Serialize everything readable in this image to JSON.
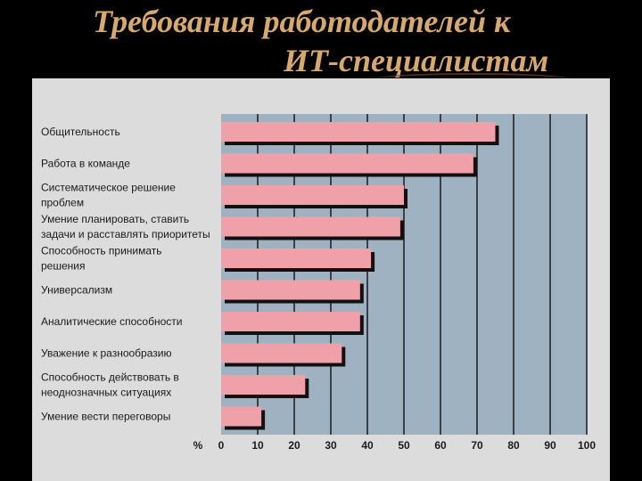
{
  "slide": {
    "title_line1": "Требования работодателей к",
    "title_line2": "ИТ-специалистам"
  },
  "colors": {
    "background": "#000000",
    "title": "#d9a96a",
    "panel": "#dcdcdc",
    "plot_area": "#9fb2c1",
    "bar": "#f0a0a8",
    "bar_shadow": "#111111",
    "gridline": "#1a1a1a"
  },
  "chart_data": {
    "type": "bar",
    "orientation": "horizontal",
    "categories": [
      "Общительность",
      "Работа в команде",
      "Систематическое решение проблем",
      "Умение планировать, ставить задачи и расставлять приоритеты",
      "Способность принимать решения",
      "Универсализм",
      "Аналитические способности",
      "Уважение к разнообразию",
      "Способность действовать в неоднозначных ситуациях",
      "Умение вести переговоры"
    ],
    "category_lines": [
      [
        "Общительность"
      ],
      [
        "Работа в команде"
      ],
      [
        "Систематическое решение",
        "проблем"
      ],
      [
        "Умение планировать, ставить",
        "задачи и расставлять приоритеты"
      ],
      [
        "Способность принимать",
        "решения"
      ],
      [
        "Универсализм"
      ],
      [
        "Аналитические способности"
      ],
      [
        "Уважение к разнообразию"
      ],
      [
        "Способность действовать в",
        "неоднозначных ситуациях"
      ],
      [
        "Умение вести переговоры"
      ]
    ],
    "values": [
      75,
      69,
      50,
      49,
      41,
      38,
      38,
      33,
      23,
      11
    ],
    "xlim": [
      0,
      100
    ],
    "xticks": [
      0,
      10,
      20,
      30,
      40,
      50,
      60,
      70,
      80,
      90,
      100
    ],
    "xunit": "%",
    "grid": true
  }
}
